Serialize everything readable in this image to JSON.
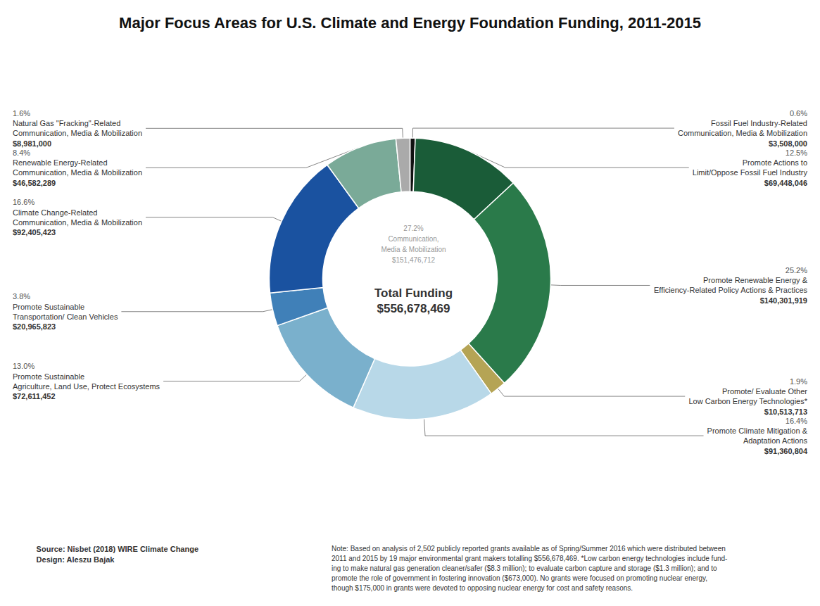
{
  "chart_data": {
    "type": "pie",
    "title": "Major Focus Areas for U.S. Climate and Energy Foundation Funding, 2011-2015",
    "center_label": "Total Funding\n$556,678,469",
    "group_label": "27.2%\nCommunication,\nMedia & Mobilization\n$151,476,712",
    "categories": [
      "Fossil Fuel Industry-Related\nCommunication, Media & Mobilization\n$3,508,000",
      "Promote Actions to\nLimit/Oppose Fossil Fuel Industry\n$69,448,046",
      "Promote Renewable Energy &\nEfficiency-Related Policy Actions & Practices\n$140,301,919",
      "Promote/ Evaluate Other\nLow Carbon Energy Technologies*\n$10,513,713",
      "Promote Climate Mitigation &\nAdaptation Actions\n$91,360,804",
      "Promote Sustainable\nAgriculture, Land Use, Protect Ecosystems\n$72,611,452",
      "Promote Sustainable\nTransportation/ Clean Vehicles\n$20,965,823",
      "Climate Change-Related\nCommunication, Media & Mobilization\n$92,405,423",
      "Renewable Energy-Related\nCommunication, Media & Mobilization\n$46,582,289",
      "Natural Gas \"Fracking\"-Related\nCommunication, Media & Mobilization\n$8,981,000"
    ],
    "values": [
      0.6,
      12.5,
      25.2,
      1.9,
      16.4,
      13.0,
      3.8,
      16.6,
      8.4,
      1.6
    ],
    "value_labels": [
      "0.6%",
      "12.5%",
      "25.2%",
      "1.9%",
      "16.4%",
      "13.0%",
      "3.8%",
      "16.6%",
      "8.4%",
      "1.6%"
    ],
    "colors": [
      "#111111",
      "#1a5c38",
      "#2a7a4a",
      "#b5a455",
      "#b8d8e8",
      "#7ab0cc",
      "#4080b8",
      "#1a52a0",
      "#7aaa98",
      "#aaaaaa"
    ],
    "data_labels": true,
    "source": "Source: Nisbet (2018) WIRE Climate Change\nDesign: Aleszu Bajak",
    "note": "Note: Based on analysis of 2,502 publicly reported grants available as of Spring/Summer 2016 which were distributed between\n2011 and 2015 by 19 major environmental grant makers totalling $556,678,469. *Low carbon energy technologies include fund-\ning to make natural gas generation cleaner/safer ($8.3 million); to evaluate carbon capture and storage ($1.3 million); and to\npromote the role of government in fostering innovation ($673,000). No grants were focused on promoting nuclear energy,\nthough $175,000 in grants were devoted to opposing nuclear energy for cost and safety reasons."
  }
}
